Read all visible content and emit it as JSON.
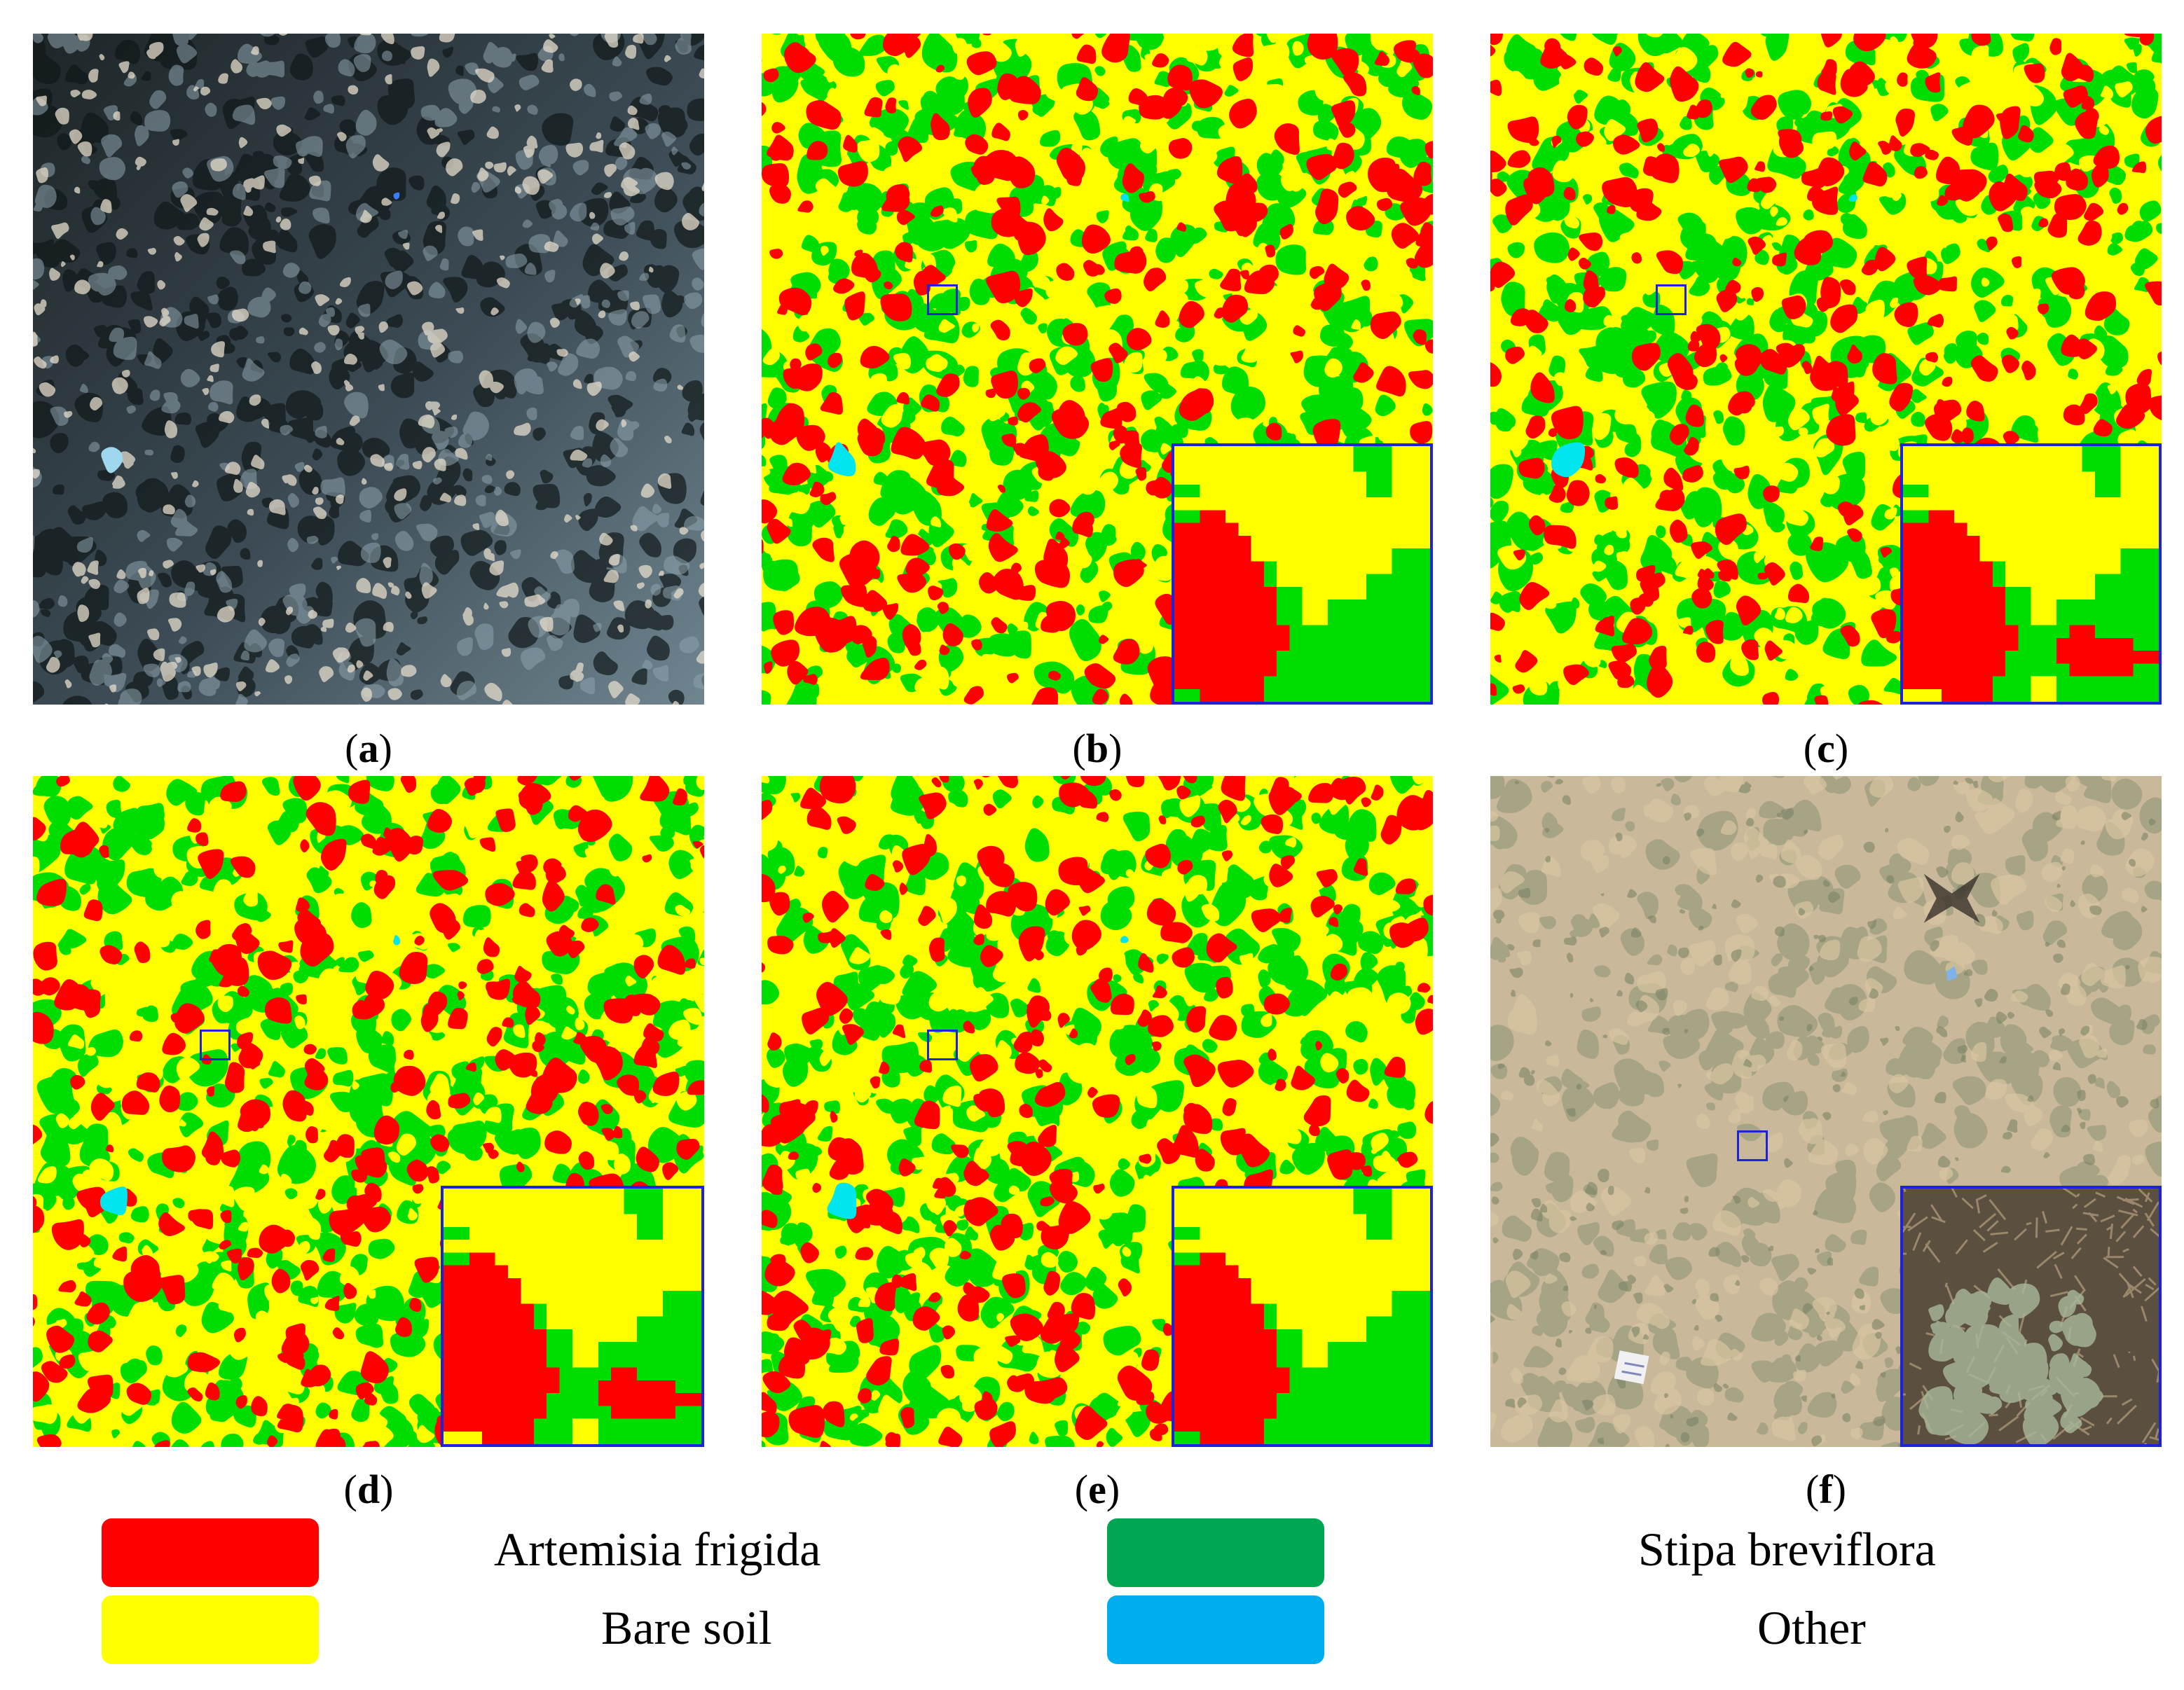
{
  "colors": {
    "artemisia": "#ff0000",
    "soil": "#ffff00",
    "stipa": "#00dd00",
    "other": "#00e5ee",
    "legend_stipa": "#00a651",
    "legend_other": "#00aeef",
    "frame": "#1c23d8"
  },
  "panels": [
    {
      "id": "a",
      "kind": "satellite",
      "caption": "a"
    },
    {
      "id": "b",
      "kind": "classification",
      "caption": "b",
      "inset_variant": "b"
    },
    {
      "id": "c",
      "kind": "classification",
      "caption": "c",
      "inset_variant": "c"
    },
    {
      "id": "d",
      "kind": "classification",
      "caption": "d",
      "inset_variant": "c"
    },
    {
      "id": "e",
      "kind": "classification",
      "caption": "e",
      "inset_variant": "b"
    },
    {
      "id": "f",
      "kind": "uav-photo",
      "caption": "f"
    }
  ],
  "legend": [
    {
      "label": "Artemisia frigida",
      "color_key": "artemisia"
    },
    {
      "label": "Stipa breviflora",
      "color_key": "legend_stipa"
    },
    {
      "label": "Bare soil",
      "color_key": "soil"
    },
    {
      "label": "Other",
      "color_key": "legend_other"
    }
  ]
}
